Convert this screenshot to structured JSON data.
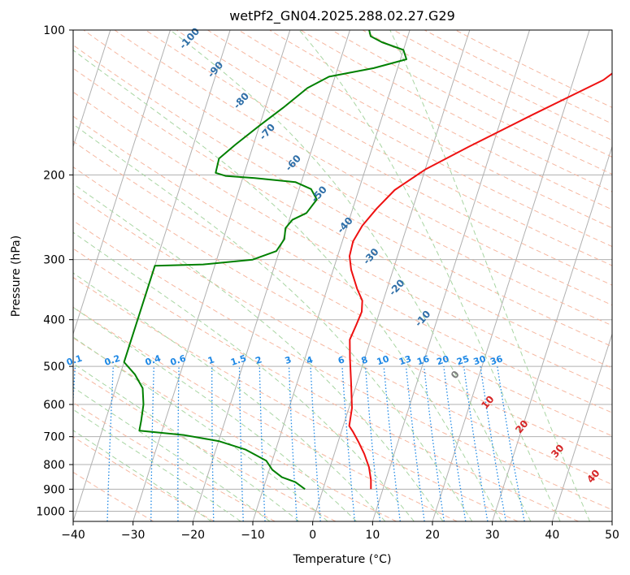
{
  "chart_data": {
    "type": "line",
    "title": "wetPf2_GN04.2025.288.02.27.G29",
    "xlabel": "Temperature (°C)",
    "ylabel": "Pressure (hPa)",
    "xlim": [
      -40,
      50
    ],
    "ylim": [
      1050,
      100
    ],
    "y_scale": "log",
    "x_ticks": [
      -40,
      -30,
      -20,
      -10,
      0,
      10,
      20,
      30,
      40,
      50
    ],
    "y_ticks": [
      100,
      200,
      300,
      400,
      500,
      600,
      700,
      800,
      900,
      1000
    ],
    "grid": true,
    "series": [
      {
        "role": "temperature",
        "color": "#ee1111",
        "points": [
          [
            33.5,
            100
          ],
          [
            28.5,
            115
          ],
          [
            25.0,
            127
          ],
          [
            15.0,
            150
          ],
          [
            6.0,
            175
          ],
          [
            0.0,
            195
          ],
          [
            -4.0,
            215
          ],
          [
            -6.0,
            235
          ],
          [
            -7.5,
            255
          ],
          [
            -8.2,
            275
          ],
          [
            -8.0,
            295
          ],
          [
            -7.0,
            315
          ],
          [
            -5.0,
            345
          ],
          [
            -3.5,
            365
          ],
          [
            -3.0,
            385
          ],
          [
            -3.2,
            410
          ],
          [
            -3.5,
            440
          ],
          [
            -2.5,
            480
          ],
          [
            -1.0,
            540
          ],
          [
            0.5,
            610
          ],
          [
            1.0,
            665
          ],
          [
            2.0,
            685
          ],
          [
            3.5,
            720
          ],
          [
            5.0,
            760
          ],
          [
            6.5,
            810
          ],
          [
            7.5,
            860
          ],
          [
            8.0,
            900
          ]
        ]
      },
      {
        "role": "dewpoint",
        "color": "#008000",
        "points": [
          [
            -16.8,
            100
          ],
          [
            -16.2,
            103
          ],
          [
            -14.0,
            106
          ],
          [
            -10.0,
            110
          ],
          [
            -9.0,
            115
          ],
          [
            -14.0,
            120
          ],
          [
            -21.0,
            125
          ],
          [
            -24.0,
            132
          ],
          [
            -27.0,
            145
          ],
          [
            -30.0,
            158
          ],
          [
            -33.0,
            173
          ],
          [
            -35.0,
            185
          ],
          [
            -34.8,
            198
          ],
          [
            -33.0,
            201
          ],
          [
            -28.0,
            203
          ],
          [
            -21.0,
            207
          ],
          [
            -18.0,
            214
          ],
          [
            -16.5,
            225
          ],
          [
            -17.5,
            240
          ],
          [
            -19.5,
            248
          ],
          [
            -20.2,
            258
          ],
          [
            -19.8,
            272
          ],
          [
            -20.5,
            288
          ],
          [
            -24.0,
            300
          ],
          [
            -32.0,
            307
          ],
          [
            -40.0,
            309
          ],
          [
            -40.0,
            490
          ],
          [
            -37.5,
            520
          ],
          [
            -35.5,
            555
          ],
          [
            -34.5,
            600
          ],
          [
            -34.0,
            650
          ],
          [
            -33.8,
            680
          ],
          [
            -26.0,
            695
          ],
          [
            -20.0,
            715
          ],
          [
            -15.0,
            745
          ],
          [
            -11.0,
            785
          ],
          [
            -9.5,
            820
          ],
          [
            -7.5,
            850
          ],
          [
            -5.0,
            870
          ],
          [
            -3.0,
            900
          ]
        ]
      }
    ],
    "dry_adiabat_labels": [
      -100,
      -90,
      -80,
      -70,
      -60,
      -50,
      -40,
      -30,
      -20,
      -10
    ],
    "moist_adiabat_labels": [
      0,
      10,
      20,
      30,
      40
    ],
    "mixing_ratio_labels": [
      "0.1",
      "0.2",
      "0.4",
      "0.6",
      "1",
      "1.5",
      "2",
      "3",
      "4",
      "6",
      "8",
      "10",
      "13",
      "16",
      "20",
      "25",
      "30",
      "36"
    ],
    "colors": {
      "isotherm": "#b0b0b0",
      "isobar": "#b0b0b0",
      "dry_adiabat": "#f6b7a0",
      "moist_adiabat": "#a8d5a2",
      "mixing_ratio": "#1e88e5",
      "dry_label": "#2f6fa8",
      "moist_label": "#d62728",
      "mixing_label": "#1e88e5",
      "zero_label": "#808080",
      "tan_curve": "#d2b48c"
    }
  }
}
